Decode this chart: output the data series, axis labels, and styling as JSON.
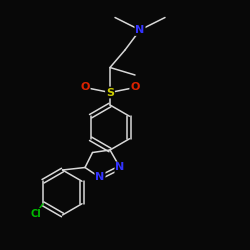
{
  "bg_color": "#080808",
  "bond_color": "#d8d8d8",
  "nitrogen_color": "#3333ff",
  "oxygen_color": "#dd2200",
  "chlorine_color": "#00bb00",
  "sulfur_color": "#cccc00",
  "font_size": 8,
  "layout": {
    "figsize": [
      2.5,
      2.5
    ],
    "dpi": 100,
    "xlim": [
      0,
      1
    ],
    "ylim": [
      0,
      1
    ]
  }
}
